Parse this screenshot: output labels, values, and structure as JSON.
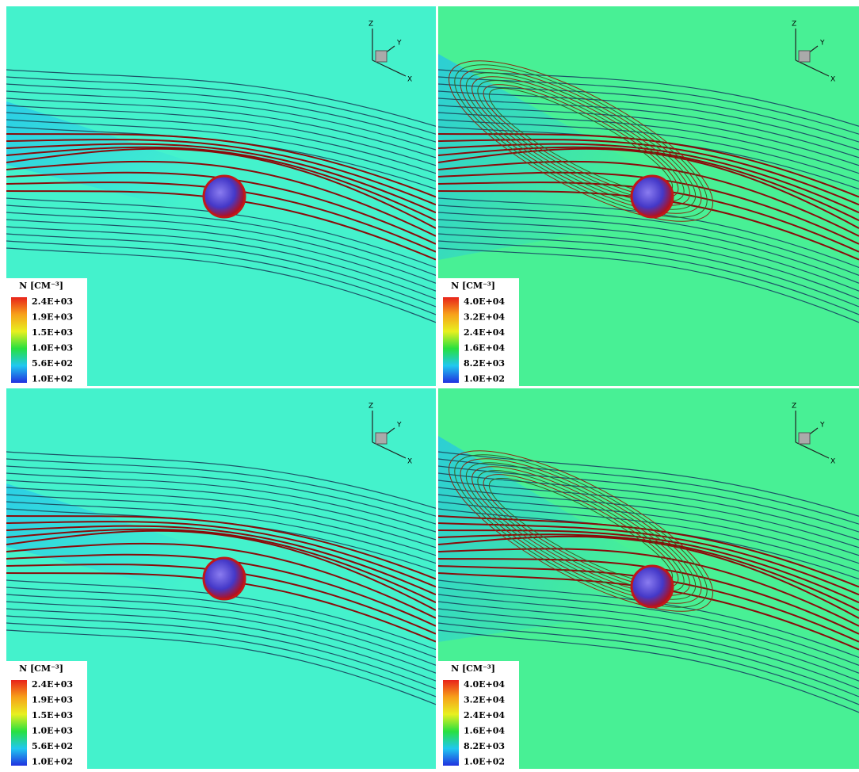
{
  "panels": [
    {
      "legend": {
        "title": "N [CM⁻³]",
        "labels": [
          "2.4E+03",
          "1.9E+03",
          "1.5E+03",
          "1.0E+03",
          "5.6E+02",
          "1.0E+02"
        ]
      },
      "axes": {
        "z": "Z",
        "y": "Y",
        "x": "X"
      }
    },
    {
      "legend": {
        "title": "N [CM⁻³]",
        "labels": [
          "4.0E+04",
          "3.2E+04",
          "2.4E+04",
          "1.6E+04",
          "8.2E+03",
          "1.0E+02"
        ]
      },
      "axes": {
        "z": "Z",
        "y": "Y",
        "x": "X"
      }
    },
    {
      "legend": {
        "title": "N [CM⁻³]",
        "labels": [
          "2.4E+03",
          "1.9E+03",
          "1.5E+03",
          "1.0E+03",
          "5.6E+02",
          "1.0E+02"
        ]
      },
      "axes": {
        "z": "Z",
        "y": "Y",
        "x": "X"
      }
    },
    {
      "legend": {
        "title": "N [CM⁻³]",
        "labels": [
          "4.0E+04",
          "3.2E+04",
          "2.4E+04",
          "1.6E+04",
          "8.2E+03",
          "1.0E+02"
        ]
      },
      "axes": {
        "z": "Z",
        "y": "Y",
        "x": "X"
      }
    }
  ]
}
